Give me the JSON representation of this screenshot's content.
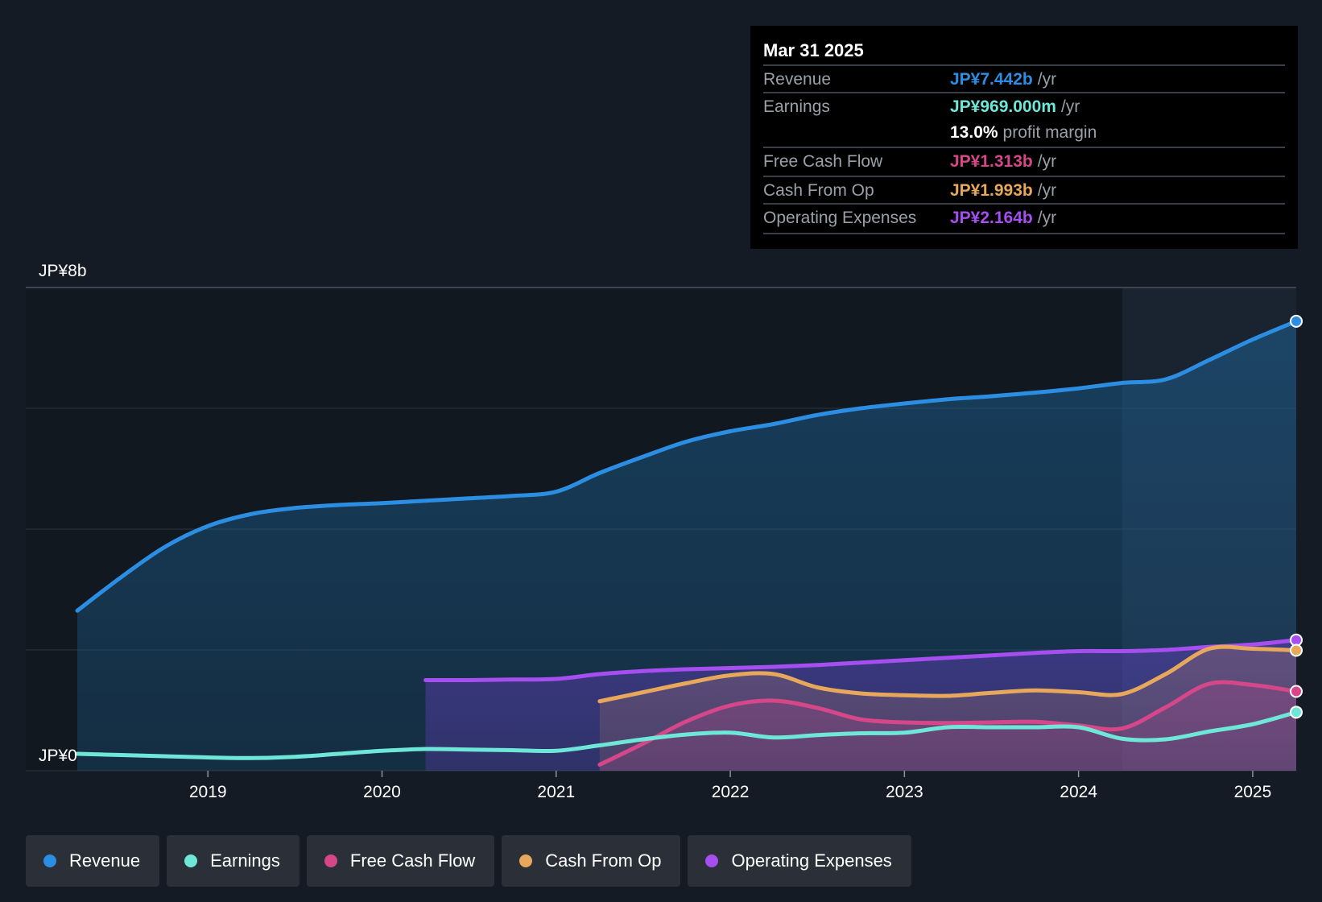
{
  "tooltip": {
    "date": "Mar 31 2025",
    "rows": [
      {
        "label": "Revenue",
        "value": "JP¥7.442b",
        "unit": "/yr",
        "color": "#2c8ee3"
      },
      {
        "label": "Earnings",
        "value": "JP¥969.000m",
        "unit": "/yr",
        "color": "#6ee7d8"
      },
      {
        "label": "",
        "value": "13.0%",
        "unit": "profit margin",
        "color": "#ffffff"
      },
      {
        "label": "Free Cash Flow",
        "value": "JP¥1.313b",
        "unit": "/yr",
        "color": "#d6478a"
      },
      {
        "label": "Cash From Op",
        "value": "JP¥1.993b",
        "unit": "/yr",
        "color": "#e8a85c"
      },
      {
        "label": "Operating Expenses",
        "value": "JP¥2.164b",
        "unit": "/yr",
        "color": "#a64ef0"
      }
    ]
  },
  "legend": [
    {
      "label": "Revenue",
      "color": "#2c8ee3"
    },
    {
      "label": "Earnings",
      "color": "#6ee7d8"
    },
    {
      "label": "Free Cash Flow",
      "color": "#d6478a"
    },
    {
      "label": "Cash From Op",
      "color": "#e8a85c"
    },
    {
      "label": "Operating Expenses",
      "color": "#a64ef0"
    }
  ],
  "chart_data": {
    "type": "area",
    "title": "",
    "xlabel": "",
    "ylabel": "",
    "y_tick_labels": [
      {
        "value": 8,
        "label": "JP¥8b"
      },
      {
        "value": 0,
        "label": "JP¥0"
      }
    ],
    "x_tick_labels": [
      {
        "value": 2019,
        "label": "2019"
      },
      {
        "value": 2020,
        "label": "2020"
      },
      {
        "value": 2021,
        "label": "2021"
      },
      {
        "value": 2022,
        "label": "2022"
      },
      {
        "value": 2023,
        "label": "2023"
      },
      {
        "value": 2024,
        "label": "2024"
      },
      {
        "value": 2025,
        "label": "2025"
      }
    ],
    "xlim": [
      2018.0,
      2025.25
    ],
    "ylim": [
      0,
      8
    ],
    "y_gridlines": [
      0,
      2,
      4,
      6,
      8
    ],
    "forecast_shade_start": 2024.25,
    "units": "JP¥ billions",
    "series": [
      {
        "name": "Revenue",
        "color": "#2c8ee3",
        "fill": true,
        "x": [
          2018.25,
          2018.5,
          2018.75,
          2019.0,
          2019.25,
          2019.5,
          2019.75,
          2020.0,
          2020.25,
          2020.5,
          2020.75,
          2021.0,
          2021.25,
          2021.5,
          2021.75,
          2022.0,
          2022.25,
          2022.5,
          2022.75,
          2023.0,
          2023.25,
          2023.5,
          2023.75,
          2024.0,
          2024.25,
          2024.5,
          2024.75,
          2025.0,
          2025.25
        ],
        "values": [
          2.65,
          3.2,
          3.7,
          4.05,
          4.25,
          4.35,
          4.4,
          4.43,
          4.47,
          4.51,
          4.55,
          4.62,
          4.93,
          5.2,
          5.45,
          5.62,
          5.74,
          5.89,
          6.0,
          6.08,
          6.15,
          6.2,
          6.26,
          6.33,
          6.42,
          6.48,
          6.8,
          7.14,
          7.442
        ]
      },
      {
        "name": "Earnings",
        "color": "#6ee7d8",
        "fill": false,
        "x": [
          2018.25,
          2018.5,
          2018.75,
          2019.0,
          2019.25,
          2019.5,
          2019.75,
          2020.0,
          2020.25,
          2020.5,
          2020.75,
          2021.0,
          2021.25,
          2021.5,
          2021.75,
          2022.0,
          2022.25,
          2022.5,
          2022.75,
          2023.0,
          2023.25,
          2023.5,
          2023.75,
          2024.0,
          2024.25,
          2024.5,
          2024.75,
          2025.0,
          2025.25
        ],
        "values": [
          0.28,
          0.26,
          0.24,
          0.22,
          0.21,
          0.23,
          0.28,
          0.33,
          0.36,
          0.35,
          0.34,
          0.33,
          0.42,
          0.52,
          0.6,
          0.63,
          0.55,
          0.59,
          0.62,
          0.63,
          0.72,
          0.72,
          0.72,
          0.72,
          0.53,
          0.52,
          0.65,
          0.77,
          0.969
        ]
      },
      {
        "name": "Free Cash Flow",
        "color": "#d6478a",
        "fill": true,
        "x": [
          2021.25,
          2021.5,
          2021.75,
          2022.0,
          2022.25,
          2022.5,
          2022.75,
          2023.0,
          2023.25,
          2023.5,
          2023.75,
          2024.0,
          2024.25,
          2024.5,
          2024.75,
          2025.0,
          2025.25
        ],
        "values": [
          0.1,
          0.45,
          0.82,
          1.08,
          1.16,
          1.04,
          0.85,
          0.8,
          0.79,
          0.8,
          0.81,
          0.75,
          0.7,
          1.05,
          1.44,
          1.42,
          1.313
        ]
      },
      {
        "name": "Cash From Op",
        "color": "#e8a85c",
        "fill": true,
        "x": [
          2021.25,
          2021.5,
          2021.75,
          2022.0,
          2022.25,
          2022.5,
          2022.75,
          2023.0,
          2023.25,
          2023.5,
          2023.75,
          2024.0,
          2024.25,
          2024.5,
          2024.75,
          2025.0,
          2025.25
        ],
        "values": [
          1.15,
          1.3,
          1.45,
          1.58,
          1.6,
          1.38,
          1.28,
          1.25,
          1.24,
          1.29,
          1.33,
          1.3,
          1.27,
          1.6,
          2.02,
          2.02,
          1.993
        ]
      },
      {
        "name": "Operating Expenses",
        "color": "#a64ef0",
        "fill": true,
        "x": [
          2020.25,
          2020.5,
          2020.75,
          2021.0,
          2021.25,
          2021.5,
          2021.75,
          2022.0,
          2022.25,
          2022.5,
          2022.75,
          2023.0,
          2023.25,
          2023.5,
          2023.75,
          2024.0,
          2024.25,
          2024.5,
          2024.75,
          2025.0,
          2025.25
        ],
        "values": [
          1.5,
          1.5,
          1.51,
          1.52,
          1.6,
          1.65,
          1.68,
          1.7,
          1.72,
          1.75,
          1.79,
          1.83,
          1.87,
          1.91,
          1.95,
          1.98,
          1.98,
          2.0,
          2.05,
          2.09,
          2.164
        ]
      }
    ]
  }
}
